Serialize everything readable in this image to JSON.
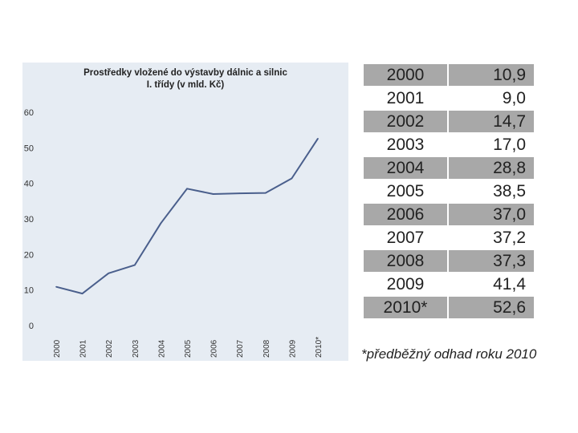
{
  "chart_data": {
    "type": "line",
    "title_line1": "Prostředky vložené do výstavby dálnic a silnic",
    "title_line2": "I. třídy (v mld. Kč)",
    "categories": [
      "2000",
      "2001",
      "2002",
      "2003",
      "2004",
      "2005",
      "2006",
      "2007",
      "2008",
      "2009",
      "2010*"
    ],
    "values": [
      10.9,
      9.0,
      14.7,
      17.0,
      28.8,
      38.5,
      37.0,
      37.2,
      37.3,
      41.4,
      52.6
    ],
    "y_ticks": [
      0,
      10,
      20,
      30,
      40,
      50,
      60
    ],
    "ylim": [
      0,
      60
    ],
    "line_color": "#4a5f8c",
    "background_color": "#e6ecf3",
    "grid": false
  },
  "table": {
    "rows": [
      {
        "year": "2000",
        "value": "10,9"
      },
      {
        "year": "2001",
        "value": "9,0"
      },
      {
        "year": "2002",
        "value": "14,7"
      },
      {
        "year": "2003",
        "value": "17,0"
      },
      {
        "year": "2004",
        "value": "28,8"
      },
      {
        "year": "2005",
        "value": "38,5"
      },
      {
        "year": "2006",
        "value": "37,0"
      },
      {
        "year": "2007",
        "value": "37,2"
      },
      {
        "year": "2008",
        "value": "37,3"
      },
      {
        "year": "2009",
        "value": "41,4"
      },
      {
        "year": "2010*",
        "value": "52,6"
      }
    ]
  },
  "footnote": "*předběžný odhad roku 2010"
}
